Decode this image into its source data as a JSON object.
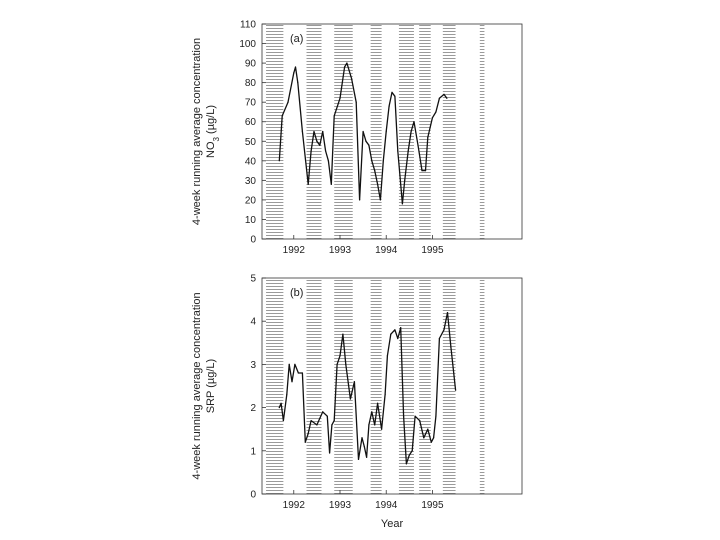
{
  "chart_data": [
    {
      "type": "line",
      "panel_label": "(a)",
      "ylabel_line1": "4-week running average concentration",
      "ylabel_line2": "NO3 (µg/L)",
      "ylabel_nutrient": "NO",
      "ylabel_subscript": "3",
      "ylabel_units": " (µg/L)",
      "ylim": [
        0,
        110
      ],
      "yticks": [
        "0",
        "10",
        "20",
        "30",
        "40",
        "50",
        "60",
        "70",
        "80",
        "90",
        "100",
        "110"
      ],
      "x_range": [
        1991.75,
        1996.25
      ],
      "xticks": [
        {
          "label": "1992",
          "value": 1992.3
        },
        {
          "label": "1993",
          "value": 1993.1
        },
        {
          "label": "1994",
          "value": 1993.9
        },
        {
          "label": "1995",
          "value": 1994.7
        }
      ],
      "shaded_periods": [
        [
          1991.82,
          1992.12
        ],
        [
          1992.52,
          1992.78
        ],
        [
          1993.0,
          1993.32
        ],
        [
          1993.63,
          1993.82
        ],
        [
          1994.12,
          1994.38
        ],
        [
          1994.47,
          1994.67
        ],
        [
          1994.88,
          1995.1
        ],
        [
          1995.52,
          1995.6
        ]
      ],
      "series": [
        {
          "name": "NO3",
          "x": [
            1992.05,
            1992.1,
            1992.2,
            1992.3,
            1992.33,
            1992.37,
            1992.45,
            1992.55,
            1992.6,
            1992.65,
            1992.7,
            1992.75,
            1992.8,
            1992.85,
            1992.9,
            1992.95,
            1993.0,
            1993.1,
            1993.18,
            1993.22,
            1993.3,
            1993.38,
            1993.44,
            1993.5,
            1993.55,
            1993.6,
            1993.65,
            1993.7,
            1993.75,
            1993.8,
            1993.85,
            1993.9,
            1993.95,
            1994.0,
            1994.05,
            1994.1,
            1994.18,
            1994.22,
            1994.28,
            1994.33,
            1994.38,
            1994.45,
            1994.52,
            1994.58,
            1994.62,
            1994.7,
            1994.76,
            1994.82,
            1994.9,
            1994.95
          ],
          "y": [
            40,
            63,
            70,
            85,
            88,
            80,
            55,
            28,
            45,
            55,
            50,
            48,
            55,
            45,
            40,
            28,
            63,
            72,
            88,
            90,
            82,
            70,
            20,
            55,
            50,
            48,
            40,
            35,
            28,
            20,
            40,
            55,
            68,
            75,
            73,
            45,
            18,
            30,
            45,
            55,
            60,
            48,
            35,
            35,
            52,
            62,
            65,
            72,
            74,
            72
          ]
        }
      ]
    },
    {
      "type": "line",
      "panel_label": "(b)",
      "ylabel_line1": "4-week running average concentration",
      "ylabel_line2": "SRP (µg/L)",
      "xlabel": "Year",
      "ylim": [
        0,
        5
      ],
      "yticks": [
        "0",
        "1",
        "2",
        "3",
        "4",
        "5"
      ],
      "x_range": [
        1991.75,
        1996.25
      ],
      "xticks": [
        {
          "label": "1992",
          "value": 1992.3
        },
        {
          "label": "1993",
          "value": 1993.1
        },
        {
          "label": "1994",
          "value": 1993.9
        },
        {
          "label": "1995",
          "value": 1994.7
        }
      ],
      "shaded_periods": [
        [
          1991.82,
          1992.12
        ],
        [
          1992.52,
          1992.78
        ],
        [
          1993.0,
          1993.32
        ],
        [
          1993.63,
          1993.82
        ],
        [
          1994.12,
          1994.38
        ],
        [
          1994.47,
          1994.67
        ],
        [
          1994.88,
          1995.1
        ],
        [
          1995.52,
          1995.6
        ]
      ],
      "series": [
        {
          "name": "SRP",
          "x": [
            1992.05,
            1992.08,
            1992.12,
            1992.18,
            1992.22,
            1992.27,
            1992.32,
            1992.38,
            1992.45,
            1992.5,
            1992.55,
            1992.6,
            1992.7,
            1992.8,
            1992.88,
            1992.92,
            1992.96,
            1993.0,
            1993.05,
            1993.1,
            1993.15,
            1993.2,
            1993.28,
            1993.35,
            1993.42,
            1993.48,
            1993.52,
            1993.56,
            1993.6,
            1993.65,
            1993.7,
            1993.75,
            1993.82,
            1993.88,
            1993.92,
            1993.98,
            1994.05,
            1994.1,
            1994.15,
            1994.2,
            1994.25,
            1994.3,
            1994.35,
            1994.4,
            1994.48,
            1994.55,
            1994.62,
            1994.68,
            1994.72,
            1994.76,
            1994.82,
            1994.9,
            1994.96,
            1995.02,
            1995.1
          ],
          "y": [
            2.0,
            2.1,
            1.7,
            2.3,
            3.0,
            2.6,
            3.0,
            2.8,
            2.8,
            1.2,
            1.4,
            1.7,
            1.6,
            1.9,
            1.8,
            0.95,
            1.6,
            1.7,
            3.0,
            3.2,
            3.7,
            3.0,
            2.2,
            2.6,
            0.8,
            1.3,
            1.1,
            0.85,
            1.6,
            1.9,
            1.6,
            2.1,
            1.5,
            2.3,
            3.2,
            3.7,
            3.8,
            3.6,
            3.85,
            1.8,
            0.7,
            0.9,
            1.0,
            1.8,
            1.7,
            1.3,
            1.5,
            1.2,
            1.3,
            1.8,
            3.6,
            3.8,
            4.2,
            3.4,
            2.4
          ]
        }
      ]
    }
  ]
}
